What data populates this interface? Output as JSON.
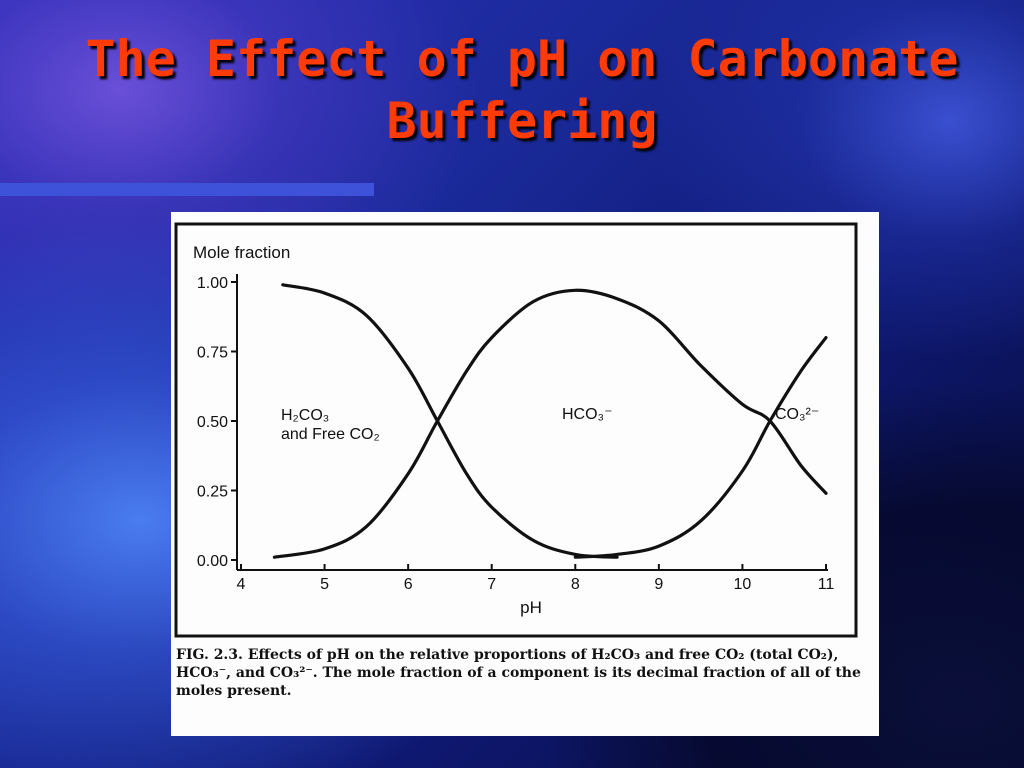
{
  "slide": {
    "title_line1": "The Effect of pH on Carbonate",
    "title_line2": "Buffering"
  },
  "figure": {
    "caption_prefix": "FIG. 2.3.",
    "caption": "Effects of pH on the relative proportions of H₂CO₃ and free CO₂ (total CO₂), HCO₃⁻, and CO₃²⁻. The mole fraction of a component is its decimal fraction of all of the moles present."
  },
  "chart_data": {
    "type": "line",
    "title": "",
    "ylabel": "Mole fraction",
    "xlabel": "pH",
    "xlim": [
      4,
      11
    ],
    "ylim": [
      0,
      1
    ],
    "x_ticks": [
      "4",
      "5",
      "6",
      "7",
      "8",
      "9",
      "10",
      "11"
    ],
    "y_ticks": [
      "0.00",
      "0.25",
      "0.50",
      "0.75",
      "1.00"
    ],
    "series": [
      {
        "name": "H₂CO₃ and Free CO₂",
        "x": [
          4.5,
          5.0,
          5.5,
          6.0,
          6.35,
          6.7,
          7.0,
          7.5,
          8.0,
          8.5
        ],
        "values": [
          0.99,
          0.96,
          0.88,
          0.69,
          0.5,
          0.31,
          0.19,
          0.07,
          0.02,
          0.01
        ]
      },
      {
        "name": "HCO₃⁻",
        "x": [
          4.4,
          5.0,
          5.5,
          6.0,
          6.35,
          6.7,
          7.0,
          7.5,
          8.0,
          8.5,
          9.0,
          9.5,
          10.0,
          10.33,
          10.7,
          11.0
        ],
        "values": [
          0.01,
          0.04,
          0.12,
          0.31,
          0.5,
          0.68,
          0.8,
          0.93,
          0.97,
          0.94,
          0.86,
          0.7,
          0.56,
          0.5,
          0.34,
          0.24
        ]
      },
      {
        "name": "CO₃²⁻",
        "x": [
          8.0,
          8.5,
          9.0,
          9.5,
          10.0,
          10.33,
          10.7,
          11.0
        ],
        "values": [
          0.01,
          0.02,
          0.05,
          0.14,
          0.32,
          0.5,
          0.68,
          0.8
        ]
      }
    ],
    "curve_labels": {
      "h2co3_line1": "H₂CO₃",
      "h2co3_line2": "and Free CO₂",
      "hco3": "HCO₃⁻",
      "co3": "CO₃²⁻"
    },
    "grid": false,
    "legend": "none"
  }
}
